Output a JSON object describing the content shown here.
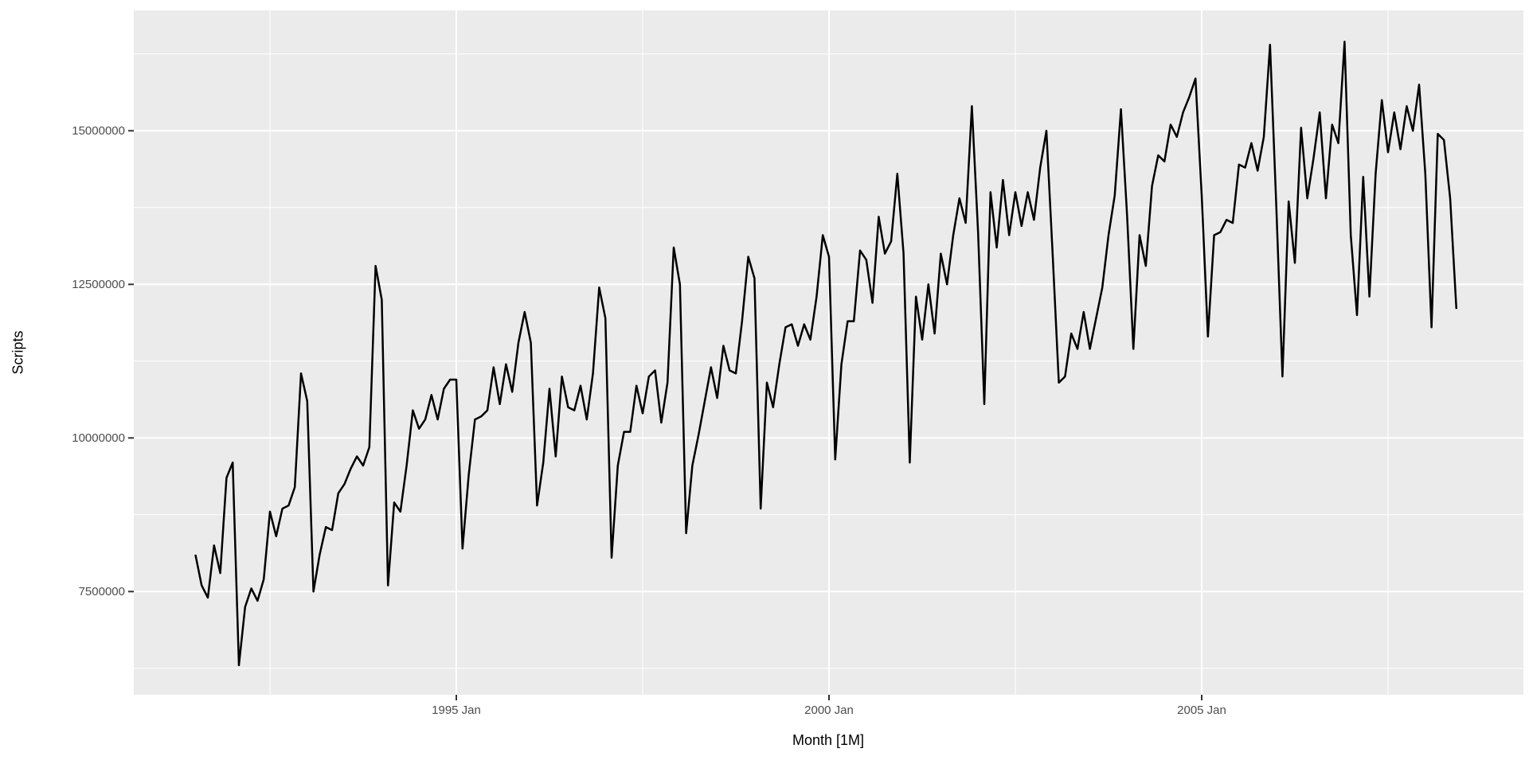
{
  "chart_data": {
    "type": "line",
    "title": "",
    "xlabel": "Month [1M]",
    "ylabel": "Scripts",
    "x_start": "1991-07",
    "x_frequency": "monthly",
    "n_points": 204,
    "x_tick_labels": [
      "1995 Jan",
      "2000 Jan",
      "2005 Jan"
    ],
    "x_tick_month_indices": [
      42,
      102,
      162
    ],
    "x_minor_month_indices": [
      12,
      72,
      132,
      192
    ],
    "y_ticks": [
      7500000,
      10000000,
      12500000,
      15000000
    ],
    "y_tick_labels": [
      "7500000",
      "10000000",
      "12500000",
      "15000000"
    ],
    "y_minor_ticks": [
      6250000,
      8750000,
      11250000,
      13750000,
      16250000
    ],
    "ylim": [
      5820000,
      16960000
    ],
    "grid": true,
    "legend": false,
    "panel_background": "#EBEBEB",
    "gridline_color": "#FFFFFF",
    "line_color": "#000000",
    "tick_mark_color": "#333333",
    "tick_label_color": "#4D4D4D",
    "series": [
      {
        "name": "Scripts",
        "values": [
          8100000,
          7600000,
          7400000,
          8250000,
          7800000,
          9350000,
          9600000,
          6300000,
          7250000,
          7550000,
          7350000,
          7700000,
          8800000,
          8400000,
          8850000,
          8900000,
          9200000,
          11050000,
          10600000,
          7500000,
          8100000,
          8550000,
          8500000,
          9100000,
          9250000,
          9500000,
          9700000,
          9550000,
          9850000,
          12800000,
          12250000,
          7600000,
          8950000,
          8800000,
          9550000,
          10450000,
          10150000,
          10300000,
          10700000,
          10300000,
          10800000,
          10950000,
          10950000,
          8200000,
          9400000,
          10300000,
          10350000,
          10450000,
          11150000,
          10550000,
          11200000,
          10750000,
          11550000,
          12050000,
          11550000,
          8900000,
          9600000,
          10800000,
          9700000,
          11000000,
          10500000,
          10450000,
          10850000,
          10300000,
          11050000,
          12450000,
          11950000,
          8050000,
          9550000,
          10100000,
          10100000,
          10850000,
          10400000,
          11000000,
          11100000,
          10250000,
          10900000,
          13100000,
          12500000,
          8450000,
          9550000,
          10050000,
          10600000,
          11150000,
          10650000,
          11500000,
          11100000,
          11050000,
          11900000,
          12950000,
          12600000,
          8850000,
          10900000,
          10500000,
          11200000,
          11800000,
          11850000,
          11500000,
          11850000,
          11600000,
          12300000,
          13300000,
          12950000,
          9650000,
          11200000,
          11900000,
          11900000,
          13050000,
          12900000,
          12200000,
          13600000,
          13000000,
          13200000,
          14300000,
          13000000,
          9600000,
          12300000,
          11600000,
          12500000,
          11700000,
          13000000,
          12500000,
          13300000,
          13900000,
          13500000,
          15400000,
          13350000,
          10550000,
          14000000,
          13100000,
          14200000,
          13300000,
          14000000,
          13450000,
          14000000,
          13550000,
          14400000,
          15000000,
          13000000,
          10900000,
          11000000,
          11700000,
          11450000,
          12050000,
          11450000,
          11950000,
          12450000,
          13300000,
          13950000,
          15350000,
          13600000,
          11450000,
          13300000,
          12800000,
          14100000,
          14600000,
          14500000,
          15100000,
          14900000,
          15300000,
          15550000,
          15850000,
          13950000,
          11650000,
          13300000,
          13350000,
          13550000,
          13500000,
          14450000,
          14400000,
          14800000,
          14350000,
          14900000,
          16400000,
          13800000,
          11000000,
          13850000,
          12850000,
          15050000,
          13900000,
          14550000,
          15300000,
          13900000,
          15100000,
          14800000,
          16450000,
          13300000,
          12000000,
          14250000,
          12300000,
          14300000,
          15500000,
          14650000,
          15300000,
          14700000,
          15400000,
          15000000,
          15750000,
          14300000,
          11800000,
          14950000,
          14850000,
          13900000,
          12100000
        ]
      }
    ]
  }
}
